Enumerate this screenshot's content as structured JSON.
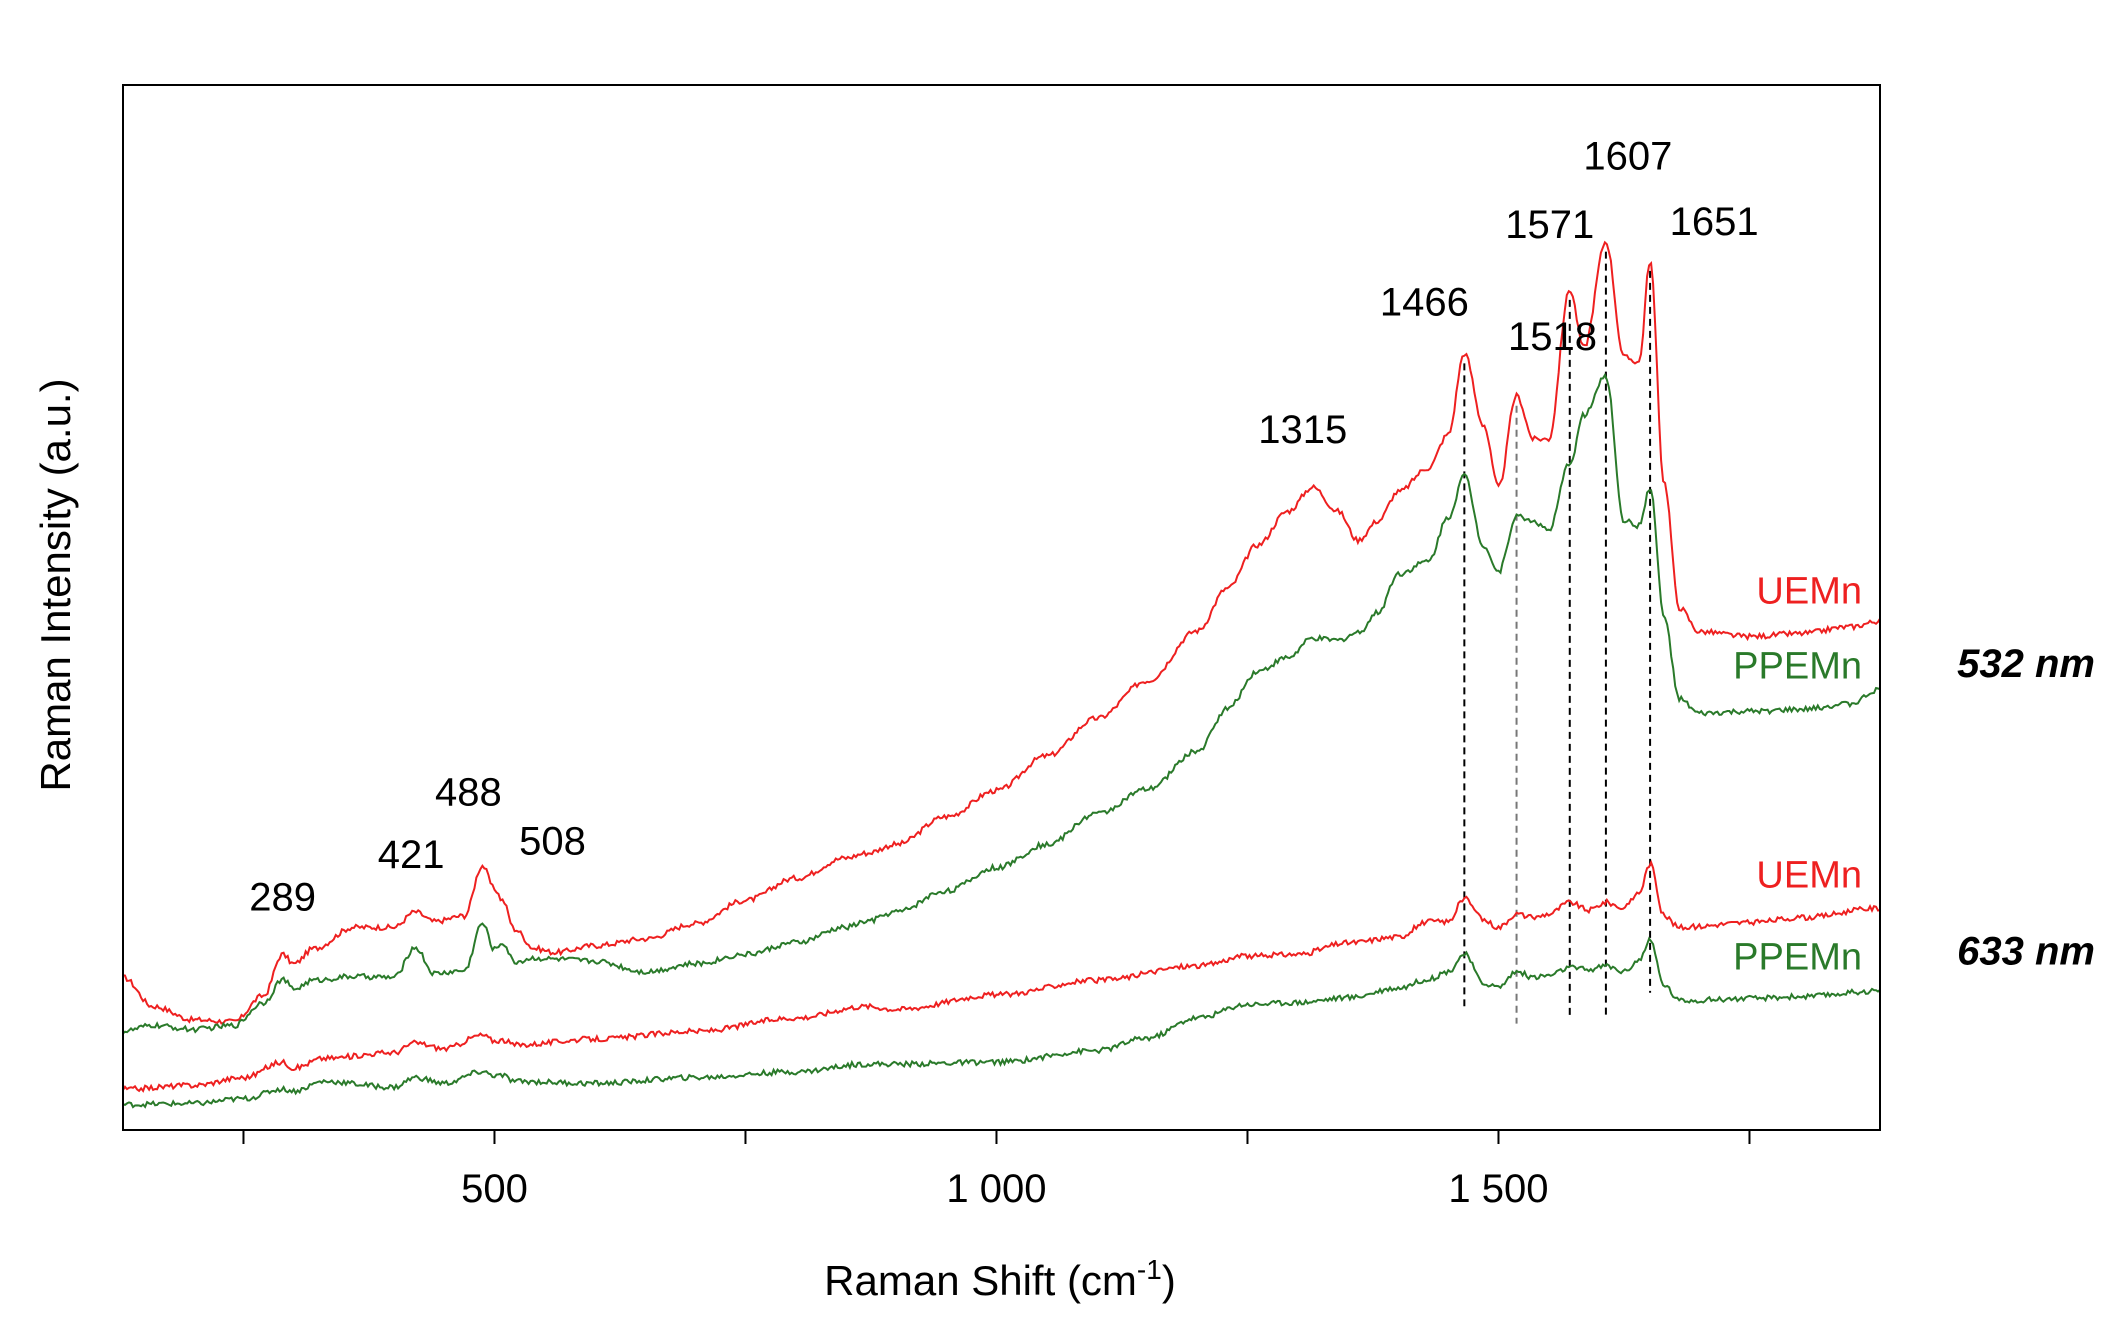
{
  "chart_data": {
    "type": "line",
    "title": "",
    "xlabel": "Raman Shift (cm",
    "xlabel_sup": "-1",
    "xlabel_close": ")",
    "ylabel": "Raman Intensity (a.u.)",
    "xlim": [
      130,
      1880
    ],
    "ylim": [
      0,
      100
    ],
    "x_ticks": [
      250,
      500,
      750,
      1000,
      1250,
      1500,
      1750
    ],
    "x_tick_labels": [
      {
        "value": 500,
        "label": "500"
      },
      {
        "value": 1000,
        "label": "1 000"
      },
      {
        "value": 1500,
        "label": "1 500"
      }
    ],
    "y_ticks_shown": false,
    "grid": false,
    "baseline_note": "",
    "peaks": [
      {
        "value": 289,
        "label": "289"
      },
      {
        "value": 421,
        "label": "421"
      },
      {
        "value": 488,
        "label": "488"
      },
      {
        "value": 508,
        "label": "508"
      },
      {
        "value": 1315,
        "label": "1315"
      },
      {
        "value": 1466,
        "label": "1466"
      },
      {
        "value": 1518,
        "label": "1518"
      },
      {
        "value": 1571,
        "label": "1571"
      },
      {
        "value": 1607,
        "label": "1607"
      },
      {
        "value": 1651,
        "label": "1651"
      }
    ],
    "reference_lines": [
      1466,
      1518,
      1571,
      1607,
      1651
    ],
    "laser_groups": [
      {
        "label": "532 nm",
        "series": [
          "532-UEMn",
          "532-PPEMn"
        ]
      },
      {
        "label": "633 nm",
        "series": [
          "633-UEMn",
          "633-PPEMn"
        ]
      }
    ],
    "series": [
      {
        "id": "532-UEMn",
        "name": "UEMn",
        "color": "#ee2020",
        "points": [
          [
            130,
            14.6
          ],
          [
            160,
            11.6
          ],
          [
            200,
            10.2
          ],
          [
            240,
            10.0
          ],
          [
            270,
            12.7
          ],
          [
            289,
            17.0
          ],
          [
            300,
            16.0
          ],
          [
            320,
            17.6
          ],
          [
            360,
            19.8
          ],
          [
            400,
            19.8
          ],
          [
            421,
            21.4
          ],
          [
            440,
            20.4
          ],
          [
            470,
            21.0
          ],
          [
            488,
            26.2
          ],
          [
            500,
            23.8
          ],
          [
            508,
            22.6
          ],
          [
            520,
            19.6
          ],
          [
            540,
            17.6
          ],
          [
            560,
            17.2
          ],
          [
            600,
            17.9
          ],
          [
            650,
            18.6
          ],
          [
            700,
            20.2
          ],
          [
            750,
            22.6
          ],
          [
            800,
            24.9
          ],
          [
            850,
            27.0
          ],
          [
            870,
            27.5
          ],
          [
            900,
            28.4
          ],
          [
            950,
            31.3
          ],
          [
            1000,
            34.0
          ],
          [
            1050,
            37.6
          ],
          [
            1100,
            41.5
          ],
          [
            1150,
            45.4
          ],
          [
            1200,
            50.6
          ],
          [
            1230,
            55.0
          ],
          [
            1260,
            59.5
          ],
          [
            1290,
            63.0
          ],
          [
            1315,
            65.5
          ],
          [
            1340,
            63.0
          ],
          [
            1360,
            60.0
          ],
          [
            1380,
            62.0
          ],
          [
            1400,
            65.0
          ],
          [
            1430,
            67.5
          ],
          [
            1450,
            71.0
          ],
          [
            1466,
            79.4
          ],
          [
            1485,
            72.0
          ],
          [
            1500,
            65.5
          ],
          [
            1518,
            75.0
          ],
          [
            1535,
            70.5
          ],
          [
            1550,
            70.5
          ],
          [
            1571,
            86.0
          ],
          [
            1585,
            80.0
          ],
          [
            1607,
            91.0
          ],
          [
            1625,
            79.0
          ],
          [
            1640,
            78.5
          ],
          [
            1651,
            89.0
          ],
          [
            1665,
            66.0
          ],
          [
            1680,
            53.0
          ],
          [
            1700,
            50.5
          ],
          [
            1750,
            50.0
          ],
          [
            1800,
            50.3
          ],
          [
            1850,
            51.0
          ],
          [
            1880,
            51.6
          ]
        ]
      },
      {
        "id": "532-PPEMn",
        "name": "PPEMn",
        "color": "#2a7a2a",
        "points": [
          [
            130,
            9.0
          ],
          [
            160,
            9.6
          ],
          [
            200,
            9.2
          ],
          [
            240,
            9.6
          ],
          [
            270,
            12.0
          ],
          [
            289,
            14.4
          ],
          [
            300,
            13.4
          ],
          [
            320,
            14.3
          ],
          [
            360,
            14.7
          ],
          [
            400,
            14.6
          ],
          [
            421,
            17.7
          ],
          [
            440,
            15.0
          ],
          [
            470,
            15.3
          ],
          [
            488,
            20.2
          ],
          [
            500,
            17.5
          ],
          [
            508,
            18.2
          ],
          [
            520,
            16.2
          ],
          [
            540,
            16.6
          ],
          [
            560,
            16.5
          ],
          [
            600,
            16.3
          ],
          [
            650,
            15.2
          ],
          [
            700,
            16.0
          ],
          [
            750,
            17.0
          ],
          [
            800,
            18.2
          ],
          [
            850,
            19.8
          ],
          [
            870,
            20.4
          ],
          [
            900,
            21.4
          ],
          [
            950,
            23.6
          ],
          [
            1000,
            26.0
          ],
          [
            1050,
            28.4
          ],
          [
            1100,
            31.6
          ],
          [
            1150,
            34.1
          ],
          [
            1200,
            38.1
          ],
          [
            1230,
            42.5
          ],
          [
            1260,
            46.4
          ],
          [
            1290,
            47.8
          ],
          [
            1315,
            49.8
          ],
          [
            1340,
            49.6
          ],
          [
            1360,
            50.4
          ],
          [
            1380,
            52.5
          ],
          [
            1400,
            56.5
          ],
          [
            1430,
            57.8
          ],
          [
            1450,
            62.4
          ],
          [
            1466,
            66.7
          ],
          [
            1485,
            59.5
          ],
          [
            1500,
            56.7
          ],
          [
            1518,
            62.5
          ],
          [
            1535,
            62.0
          ],
          [
            1550,
            61.0
          ],
          [
            1571,
            68.0
          ],
          [
            1585,
            73.0
          ],
          [
            1607,
            77.0
          ],
          [
            1625,
            62.0
          ],
          [
            1640,
            61.5
          ],
          [
            1651,
            65.5
          ],
          [
            1665,
            52.0
          ],
          [
            1680,
            43.5
          ],
          [
            1700,
            42.0
          ],
          [
            1750,
            42.2
          ],
          [
            1800,
            42.4
          ],
          [
            1850,
            43.0
          ],
          [
            1880,
            44.5
          ]
        ]
      },
      {
        "id": "633-UEMn",
        "name": "UEMn",
        "color": "#ee2020",
        "points": [
          [
            130,
            3.0
          ],
          [
            200,
            3.4
          ],
          [
            250,
            4.2
          ],
          [
            289,
            5.8
          ],
          [
            300,
            5.2
          ],
          [
            330,
            6.2
          ],
          [
            400,
            6.8
          ],
          [
            421,
            7.8
          ],
          [
            450,
            7.2
          ],
          [
            488,
            8.6
          ],
          [
            500,
            8.0
          ],
          [
            508,
            8.1
          ],
          [
            520,
            7.6
          ],
          [
            600,
            8.2
          ],
          [
            700,
            9.0
          ],
          [
            800,
            10.4
          ],
          [
            870,
            11.6
          ],
          [
            900,
            11.3
          ],
          [
            1000,
            12.8
          ],
          [
            1100,
            14.3
          ],
          [
            1200,
            15.8
          ],
          [
            1250,
            16.8
          ],
          [
            1300,
            17.0
          ],
          [
            1350,
            18.2
          ],
          [
            1400,
            18.8
          ],
          [
            1430,
            20.4
          ],
          [
            1450,
            20.4
          ],
          [
            1466,
            22.8
          ],
          [
            1485,
            20.6
          ],
          [
            1500,
            19.8
          ],
          [
            1518,
            21.2
          ],
          [
            1535,
            20.8
          ],
          [
            1550,
            21.2
          ],
          [
            1571,
            22.4
          ],
          [
            1590,
            21.6
          ],
          [
            1607,
            22.4
          ],
          [
            1625,
            21.8
          ],
          [
            1640,
            23.4
          ],
          [
            1651,
            26.4
          ],
          [
            1665,
            21.0
          ],
          [
            1680,
            19.8
          ],
          [
            1750,
            20.3
          ],
          [
            1800,
            20.8
          ],
          [
            1880,
            21.8
          ]
        ]
      },
      {
        "id": "633-PPEMn",
        "name": "PPEMn",
        "color": "#2a7a2a",
        "points": [
          [
            130,
            1.4
          ],
          [
            200,
            1.5
          ],
          [
            250,
            2.0
          ],
          [
            289,
            3.0
          ],
          [
            300,
            2.8
          ],
          [
            330,
            3.8
          ],
          [
            400,
            3.2
          ],
          [
            421,
            4.2
          ],
          [
            450,
            3.6
          ],
          [
            488,
            4.8
          ],
          [
            500,
            4.4
          ],
          [
            508,
            4.4
          ],
          [
            520,
            3.8
          ],
          [
            600,
            3.6
          ],
          [
            700,
            4.2
          ],
          [
            800,
            4.8
          ],
          [
            870,
            5.6
          ],
          [
            900,
            5.6
          ],
          [
            1000,
            5.8
          ],
          [
            1100,
            7.0
          ],
          [
            1150,
            8.3
          ],
          [
            1200,
            10.4
          ],
          [
            1250,
            11.8
          ],
          [
            1300,
            12.0
          ],
          [
            1350,
            12.5
          ],
          [
            1400,
            13.5
          ],
          [
            1430,
            14.4
          ],
          [
            1450,
            15.2
          ],
          [
            1466,
            17.0
          ],
          [
            1485,
            14.0
          ],
          [
            1500,
            13.6
          ],
          [
            1518,
            15.2
          ],
          [
            1535,
            14.6
          ],
          [
            1550,
            14.8
          ],
          [
            1571,
            15.6
          ],
          [
            1590,
            15.4
          ],
          [
            1607,
            15.8
          ],
          [
            1625,
            15.2
          ],
          [
            1640,
            16.4
          ],
          [
            1651,
            18.4
          ],
          [
            1665,
            13.8
          ],
          [
            1680,
            12.2
          ],
          [
            1750,
            12.4
          ],
          [
            1800,
            12.6
          ],
          [
            1880,
            13.2
          ]
        ]
      }
    ]
  }
}
